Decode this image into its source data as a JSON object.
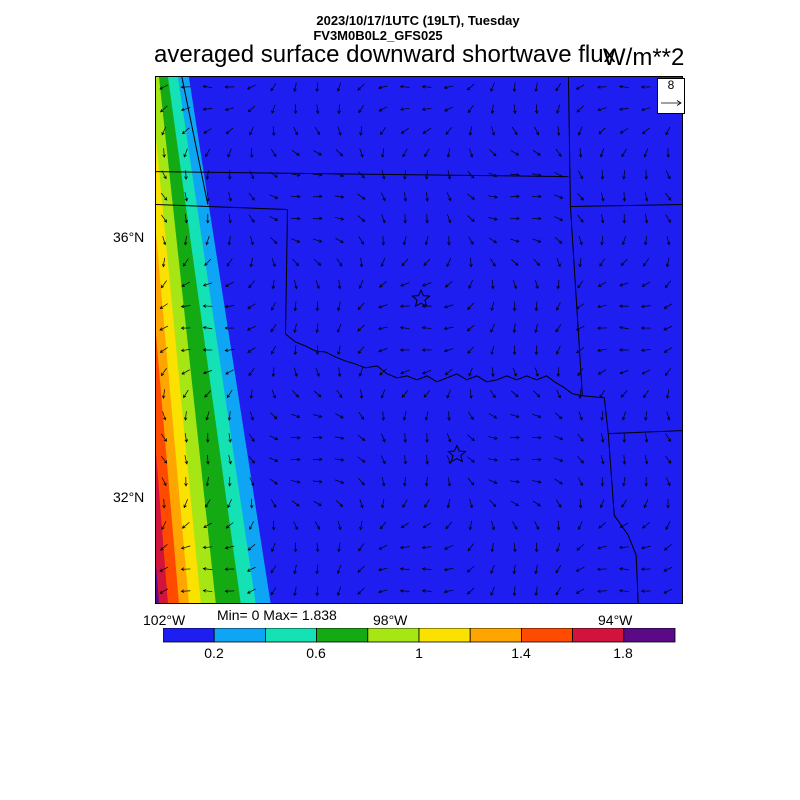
{
  "header": {
    "date_line": "2023/10/17/1UTC (19LT), Tuesday",
    "model_line": "FV3M0B0L2_GFS025",
    "title": "averaged surface downward shortwave flux",
    "units": "W/m**2"
  },
  "vector_reference": {
    "value": "8"
  },
  "axes": {
    "lat_labels": [
      "36°N",
      "32°N"
    ],
    "lon_labels": [
      "102°W",
      "98°W",
      "94°W"
    ]
  },
  "stats": {
    "minmax": "Min= 0 Max= 1.838"
  },
  "colorbar": {
    "colors": [
      "#1e1ef0",
      "#0fa5f5",
      "#14e1b4",
      "#14aa14",
      "#a5e614",
      "#fae100",
      "#ffa500",
      "#ff4b00",
      "#d2143c",
      "#5a0a87"
    ],
    "labels": [
      "0.2",
      "0.6",
      "1",
      "1.4",
      "1.8"
    ]
  },
  "chart_data": {
    "type": "heatmap",
    "title": "averaged surface downward shortwave flux",
    "units": "W/m**2",
    "value_range": [
      0,
      1.838
    ],
    "levels": [
      0.2,
      0.4,
      0.6,
      0.8,
      1.0,
      1.2,
      1.4,
      1.6,
      1.8
    ],
    "lat_ticks": [
      "36°N",
      "32°N"
    ],
    "lon_ticks": [
      "102°W",
      "98°W",
      "94°W"
    ],
    "field_description": "flux near 0 over most of domain; band of higher values along the western edge increasing to the southwest"
  }
}
